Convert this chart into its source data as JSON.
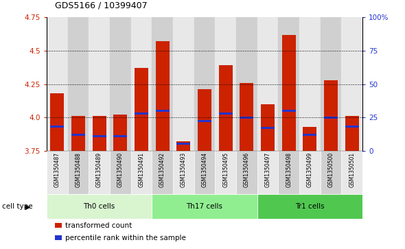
{
  "title": "GDS5166 / 10399407",
  "samples": [
    "GSM1350487",
    "GSM1350488",
    "GSM1350489",
    "GSM1350490",
    "GSM1350491",
    "GSM1350492",
    "GSM1350493",
    "GSM1350494",
    "GSM1350495",
    "GSM1350496",
    "GSM1350497",
    "GSM1350498",
    "GSM1350499",
    "GSM1350500",
    "GSM1350501"
  ],
  "transformed_count": [
    4.18,
    4.01,
    4.01,
    4.02,
    4.37,
    4.57,
    3.82,
    4.21,
    4.39,
    4.26,
    4.1,
    4.62,
    3.93,
    4.28,
    4.01
  ],
  "percentile_rank": [
    18,
    12,
    11,
    11,
    28,
    30,
    5,
    22,
    28,
    25,
    17,
    30,
    12,
    25,
    18
  ],
  "cell_type_groups": [
    {
      "label": "Th0 cells",
      "start": 0,
      "end": 4,
      "color": "#d8f5d0"
    },
    {
      "label": "Th17 cells",
      "start": 5,
      "end": 9,
      "color": "#90ee90"
    },
    {
      "label": "Tr1 cells",
      "start": 10,
      "end": 14,
      "color": "#50c850"
    }
  ],
  "ylim": [
    3.75,
    4.75
  ],
  "yticks_left": [
    3.75,
    4.0,
    4.25,
    4.5,
    4.75
  ],
  "yticks_right": [
    0,
    25,
    50,
    75,
    100
  ],
  "bar_color": "#cc2200",
  "blue_color": "#2233cc",
  "bar_bottom": 3.75,
  "col_bg_odd": "#e8e8e8",
  "col_bg_even": "#d0d0d0",
  "legend_red_label": "transformed count",
  "legend_blue_label": "percentile rank within the sample"
}
